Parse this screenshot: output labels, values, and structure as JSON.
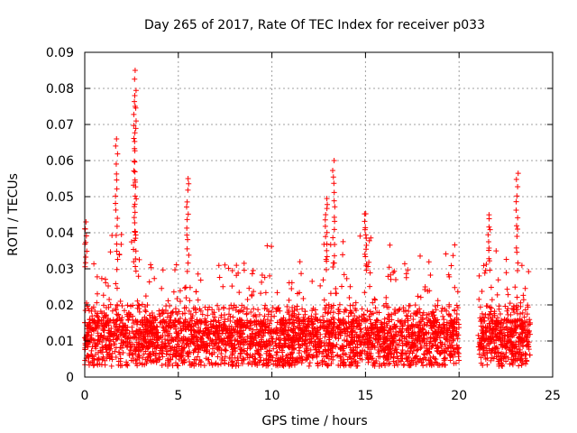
{
  "chart_data": {
    "type": "scatter",
    "title": "Day 265 of 2017, Rate Of TEC Index for receiver p033",
    "xlabel": "GPS time / hours",
    "ylabel": "ROTI / TECUs",
    "xlim": [
      0,
      25
    ],
    "ylim": [
      0,
      0.09
    ],
    "x_ticks": [
      "0",
      "5",
      "10",
      "15",
      "20",
      "25"
    ],
    "y_ticks": [
      "0",
      "0.01",
      "0.02",
      "0.03",
      "0.04",
      "0.05",
      "0.06",
      "0.07",
      "0.08",
      "0.09"
    ],
    "grid": true,
    "marker": "plus",
    "marker_color": "#ff0000",
    "data_gaps_hours": [
      [
        20.0,
        21.0
      ],
      [
        23.8,
        25.0
      ]
    ],
    "peaks": [
      {
        "x": 0.05,
        "y": 0.043
      },
      {
        "x": 1.7,
        "y": 0.066
      },
      {
        "x": 2.7,
        "y": 0.085
      },
      {
        "x": 2.65,
        "y": 0.078
      },
      {
        "x": 5.5,
        "y": 0.055
      },
      {
        "x": 13.3,
        "y": 0.06
      },
      {
        "x": 12.9,
        "y": 0.05
      },
      {
        "x": 15.0,
        "y": 0.046
      },
      {
        "x": 21.6,
        "y": 0.045
      },
      {
        "x": 23.1,
        "y": 0.057
      }
    ]
  }
}
